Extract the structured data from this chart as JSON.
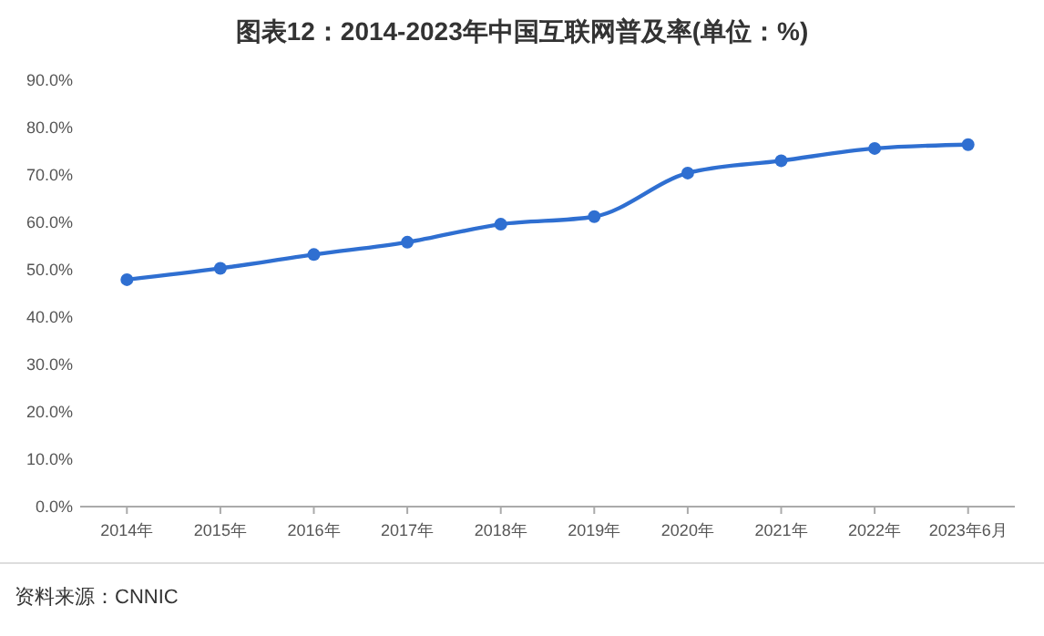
{
  "chart_data": {
    "type": "line",
    "title": "图表12：2014-2023年中国互联网普及率(单位：%)",
    "categories": [
      "2014年",
      "2015年",
      "2016年",
      "2017年",
      "2018年",
      "2019年",
      "2020年",
      "2021年",
      "2022年",
      "2023年6月"
    ],
    "series": [
      {
        "color": "#2f6fd1",
        "values": [
          47.9,
          50.3,
          53.2,
          55.8,
          59.6,
          61.2,
          70.4,
          73.0,
          75.6,
          76.4
        ]
      }
    ],
    "ylim": [
      0,
      90
    ],
    "yticks": [
      {
        "value": 0,
        "label": "0.0%"
      },
      {
        "value": 10,
        "label": "10.0%"
      },
      {
        "value": 20,
        "label": "20.0%"
      },
      {
        "value": 30,
        "label": "30.0%"
      },
      {
        "value": 40,
        "label": "40.0%"
      },
      {
        "value": 50,
        "label": "50.0%"
      },
      {
        "value": 60,
        "label": "60.0%"
      },
      {
        "value": 70,
        "label": "70.0%"
      },
      {
        "value": 80,
        "label": "80.0%"
      },
      {
        "value": 90,
        "label": "90.0%"
      }
    ],
    "marker": "circle",
    "grid": false,
    "annotations": [
      "资料来源：CNNIC"
    ]
  }
}
